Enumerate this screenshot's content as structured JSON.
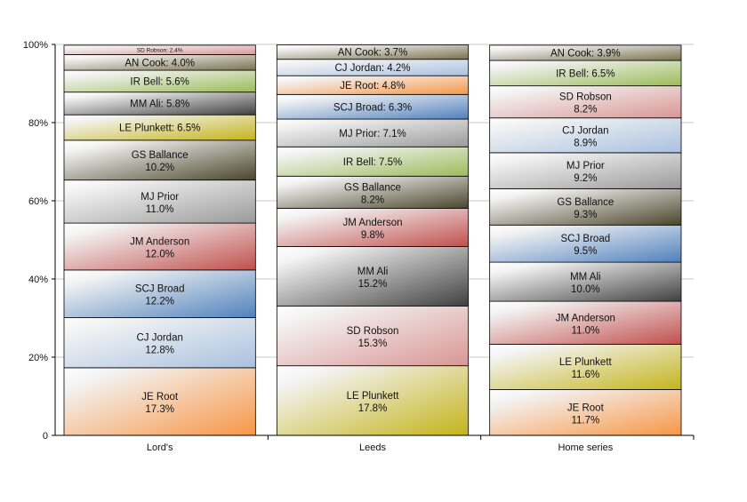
{
  "chart_data": {
    "type": "bar",
    "stacked": true,
    "categories": [
      "Lord's",
      "Leeds",
      "Home series"
    ],
    "ylim": [
      0,
      100
    ],
    "yticks": [
      "0",
      "20%",
      "40%",
      "60%",
      "80%",
      "100%"
    ],
    "grid": true,
    "colors": {
      "JE Root": "#f79646",
      "CJ Jordan": "#a9c1e0",
      "SCJ Broad": "#4f81bd",
      "JM Anderson": "#c0504d",
      "MJ Prior": "#9a9a9a",
      "GS Ballance": "#4a452a",
      "LE Plunkett": "#c4b41a",
      "MM Ali": "#404040",
      "IR Bell": "#9bbb59",
      "AN Cook": "#7a7250",
      "SD Robson": "#d99694"
    },
    "stacks": [
      [
        [
          "JE Root",
          17.3
        ],
        [
          "CJ Jordan",
          12.8
        ],
        [
          "SCJ Broad",
          12.2
        ],
        [
          "JM Anderson",
          12.0
        ],
        [
          "MJ Prior",
          11.0
        ],
        [
          "GS Ballance",
          10.2
        ],
        [
          "LE Plunkett",
          6.5
        ],
        [
          "MM Ali",
          5.8
        ],
        [
          "IR Bell",
          5.6
        ],
        [
          "AN Cook",
          4.0
        ],
        [
          "SD Robson",
          2.4
        ]
      ],
      [
        [
          "LE Plunkett",
          17.8
        ],
        [
          "SD Robson",
          15.3
        ],
        [
          "MM Ali",
          15.2
        ],
        [
          "JM Anderson",
          9.8
        ],
        [
          "GS Ballance",
          8.2
        ],
        [
          "IR Bell",
          7.5
        ],
        [
          "MJ Prior",
          7.1
        ],
        [
          "SCJ Broad",
          6.3
        ],
        [
          "JE Root",
          4.8
        ],
        [
          "CJ Jordan",
          4.2
        ],
        [
          "AN Cook",
          3.7
        ]
      ],
      [
        [
          "JE Root",
          11.7
        ],
        [
          "LE Plunkett",
          11.6
        ],
        [
          "JM Anderson",
          11.0
        ],
        [
          "MM Ali",
          10.0
        ],
        [
          "SCJ Broad",
          9.5
        ],
        [
          "GS Ballance",
          9.3
        ],
        [
          "MJ Prior",
          9.2
        ],
        [
          "CJ Jordan",
          8.9
        ],
        [
          "SD Robson",
          8.2
        ],
        [
          "IR Bell",
          6.5
        ],
        [
          "AN Cook",
          3.9
        ]
      ]
    ]
  }
}
